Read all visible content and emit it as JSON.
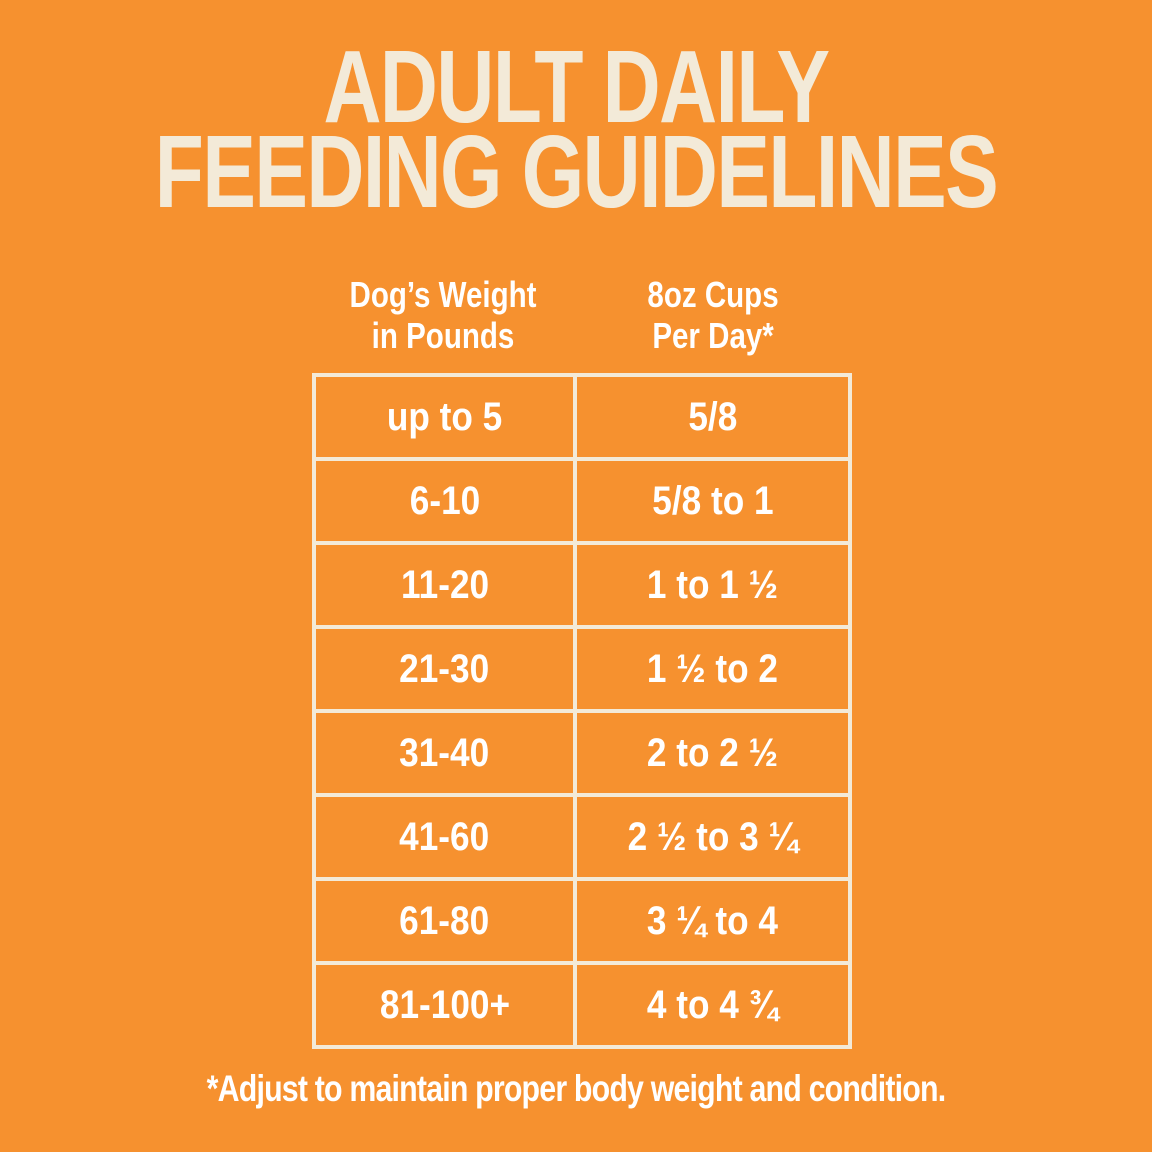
{
  "title": {
    "line1": "ADULT DAILY",
    "line2": "FEEDING GUIDELINES"
  },
  "table": {
    "columns": [
      {
        "label_line1": "Dog’s Weight",
        "label_line2": "in Pounds"
      },
      {
        "label_line1": "8oz Cups",
        "label_line2": "Per Day*"
      }
    ],
    "rows": [
      {
        "weight": "up to 5",
        "cups": "5/8"
      },
      {
        "weight": "6-10",
        "cups": "5/8 to 1"
      },
      {
        "weight": "11-20",
        "cups": "1 to 1 ½"
      },
      {
        "weight": "21-30",
        "cups": "1 ½ to 2"
      },
      {
        "weight": "31-40",
        "cups": "2 to 2 ½"
      },
      {
        "weight": "41-60",
        "cups": "2 ½ to 3 ¼"
      },
      {
        "weight": "61-80",
        "cups": "3 ¼ to 4"
      },
      {
        "weight": "81-100+",
        "cups": "4 to 4 ¾"
      }
    ]
  },
  "footnote": "*Adjust to maintain proper body weight and condition.",
  "colors": {
    "background": "#F6912F",
    "cream": "#F3EAD8",
    "text_white": "#FFFFFF"
  }
}
